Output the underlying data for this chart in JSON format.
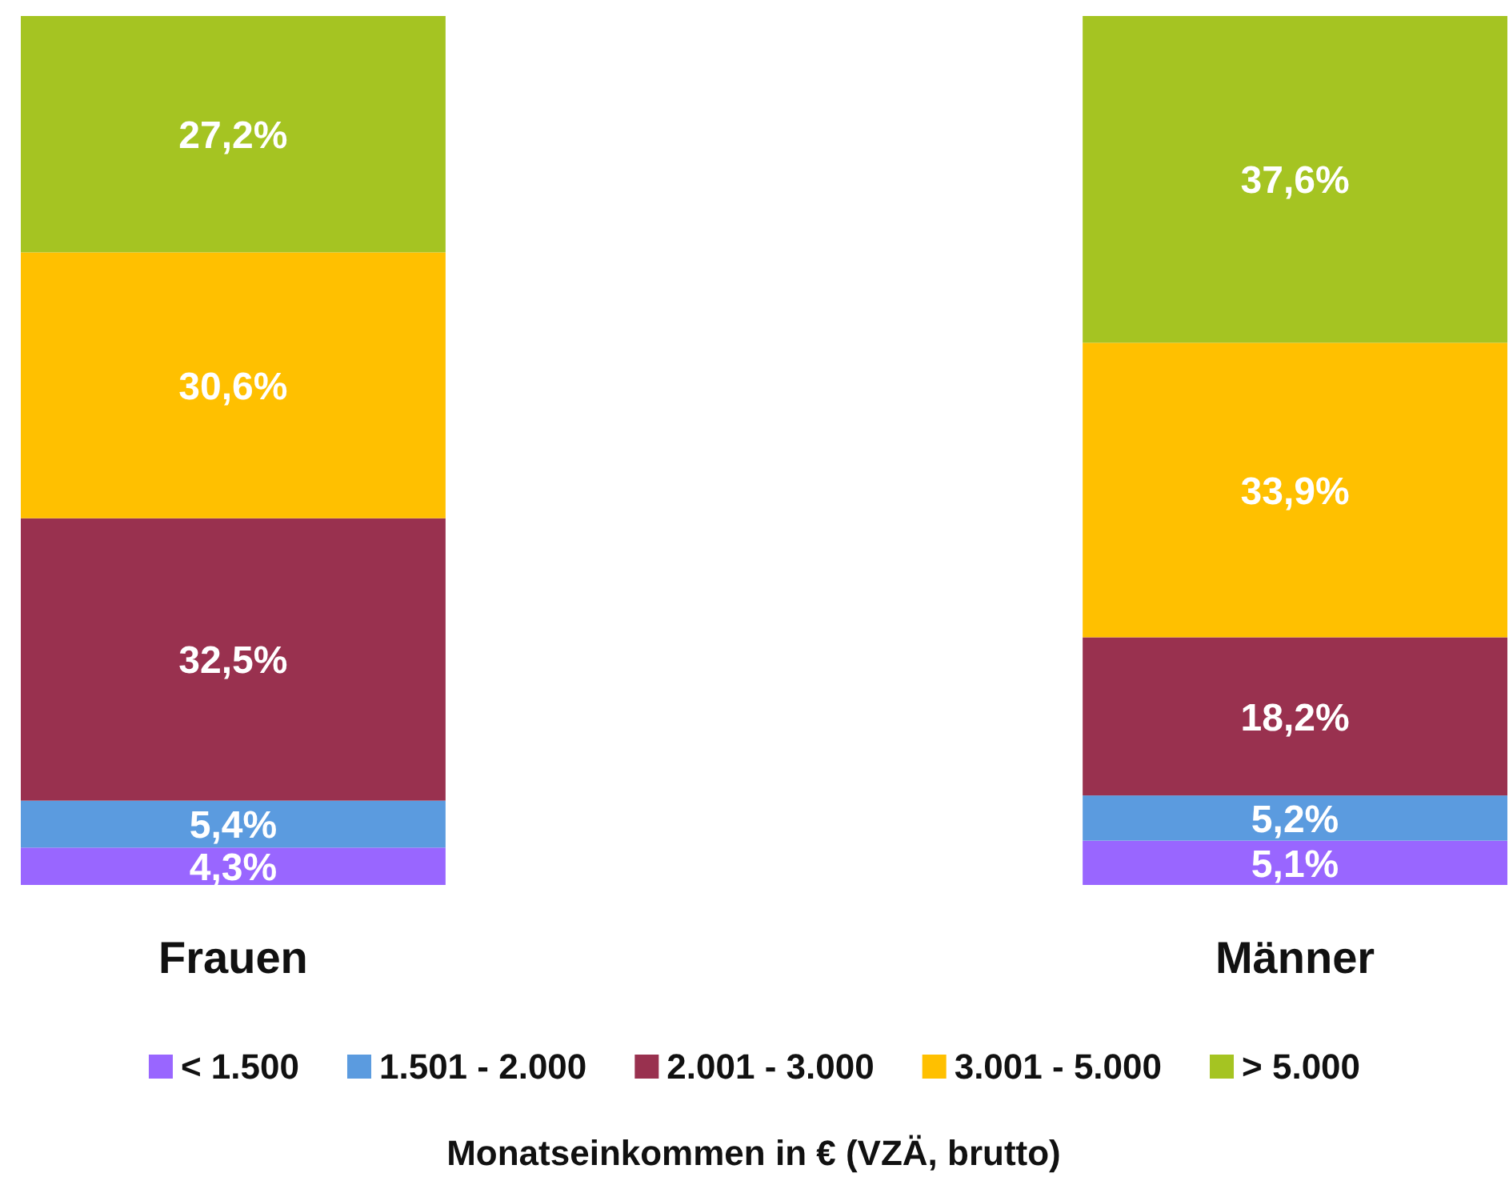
{
  "chart_data": {
    "type": "bar",
    "stacked": true,
    "xlabel": "Monatseinkommen in € (VZÄ, brutto)",
    "categories": [
      "Frauen",
      "Männer"
    ],
    "legend": "bottom",
    "series": [
      {
        "name": "< 1.500",
        "color": "#9966ff",
        "values": [
          4.3,
          5.1
        ],
        "value_labels": [
          "4,3%",
          "5,1%"
        ]
      },
      {
        "name": "1.501 - 2.000",
        "color": "#5b9bdf",
        "values": [
          5.4,
          5.2
        ],
        "value_labels": [
          "5,4%",
          "5,2%"
        ]
      },
      {
        "name": "2.001 - 3.000",
        "color": "#99314f",
        "values": [
          32.5,
          18.2
        ],
        "value_labels": [
          "32,5%",
          "18,2%"
        ]
      },
      {
        "name": "3.001 - 5.000",
        "color": "#ffc000",
        "values": [
          30.6,
          33.9
        ],
        "value_labels": [
          "30,6%",
          "33,9%"
        ]
      },
      {
        "name": "> 5.000",
        "color": "#a5c422",
        "values": [
          27.2,
          37.6
        ],
        "value_labels": [
          "27,2%",
          "37,6%"
        ]
      }
    ]
  }
}
